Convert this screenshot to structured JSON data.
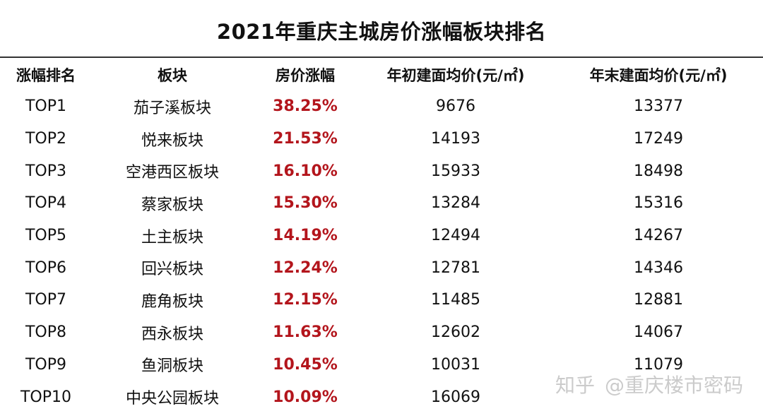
{
  "title": "2021年重庆主城房价涨幅板块排名",
  "table": {
    "headers": [
      "涨幅排名",
      "板块",
      "房价涨幅",
      "年初建面均价(元/㎡)",
      "年末建面均价(元/㎡)"
    ],
    "rows": [
      [
        "TOP1",
        "茄子溪板块",
        "38.25%",
        "9676",
        "13377"
      ],
      [
        "TOP2",
        "悦来板块",
        "21.53%",
        "14193",
        "17249"
      ],
      [
        "TOP3",
        "空港西区板块",
        "16.10%",
        "15933",
        "18498"
      ],
      [
        "TOP4",
        "蔡家板块",
        "15.30%",
        "13284",
        "15316"
      ],
      [
        "TOP5",
        "土主板块",
        "14.19%",
        "12494",
        "14267"
      ],
      [
        "TOP6",
        "回兴板块",
        "12.24%",
        "12781",
        "14346"
      ],
      [
        "TOP7",
        "鹿角板块",
        "12.15%",
        "11485",
        "12881"
      ],
      [
        "TOP8",
        "西永板块",
        "11.63%",
        "12602",
        "14067"
      ],
      [
        "TOP9",
        "鱼洞板块",
        "10.45%",
        "10031",
        "11079"
      ],
      [
        "TOP10",
        "中央公园板块",
        "10.09%",
        "16069",
        ""
      ]
    ]
  },
  "watermark": {
    "logo": "知乎",
    "account": "@重庆楼市密码"
  },
  "colors": {
    "highlight": "#b3151c",
    "text": "#111111",
    "rule": "#333333"
  }
}
